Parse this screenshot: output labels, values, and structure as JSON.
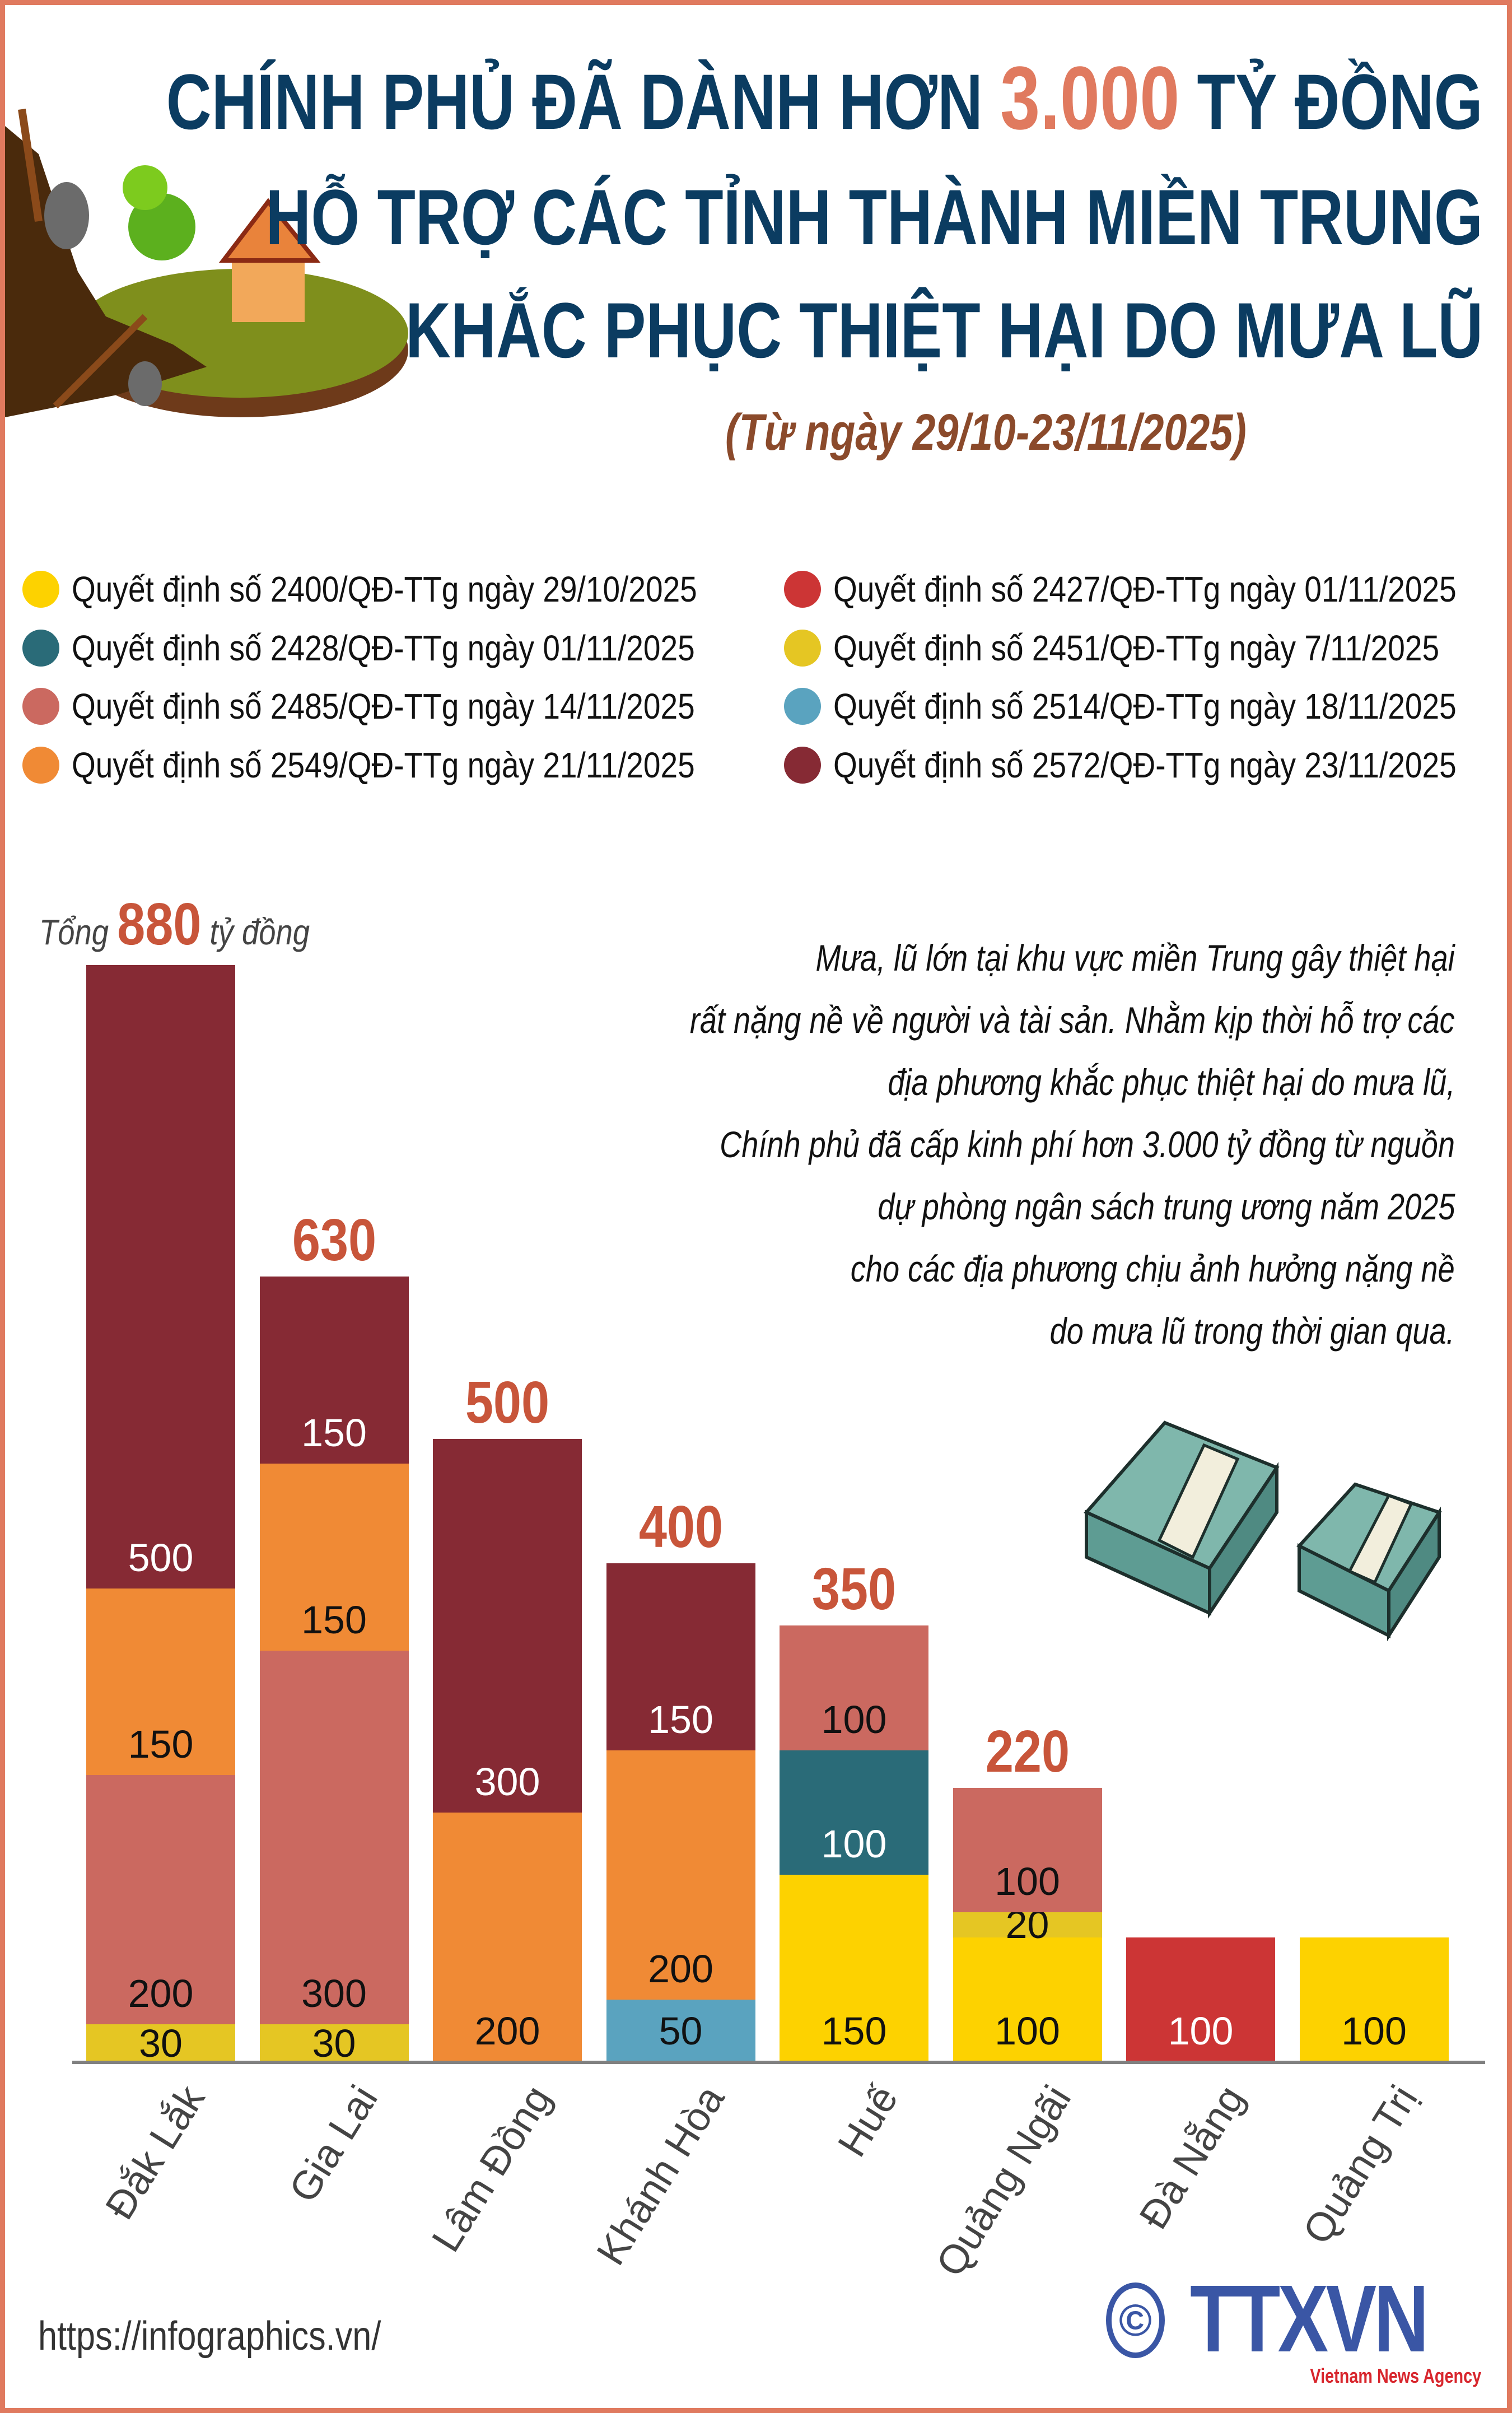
{
  "title": {
    "line1_pre": "CHÍNH PHỦ ĐÃ DÀNH HƠN",
    "line1_highlight": "3.000",
    "line1_post": "TỶ ĐỒNG",
    "line2": "HỖ TRỢ CÁC TỈNH THÀNH MIỀN TRUNG",
    "line3": "KHẮC PHỤC THIỆT HẠI DO MƯA LŨ",
    "subtitle": "(Từ ngày 29/10-23/11/2025)",
    "colors": {
      "title": "#0B3C61",
      "highlight": "#E07A5F",
      "subtitle": "#8B4A2B",
      "frame": "#E07A5F"
    }
  },
  "legend": [
    {
      "label": "Quyết định số 2400/QĐ-TTg ngày 29/10/2025",
      "color": "#FDD200"
    },
    {
      "label": "Quyết định số 2427/QĐ-TTg ngày 01/11/2025",
      "color": "#CC3535"
    },
    {
      "label": "Quyết định số 2428/QĐ-TTg ngày 01/11/2025",
      "color": "#2A6B78"
    },
    {
      "label": "Quyết định số 2451/QĐ-TTg ngày 7/11/2025",
      "color": "#E5C623"
    },
    {
      "label": "Quyết định số 2485/QĐ-TTg ngày 14/11/2025",
      "color": "#CB6960"
    },
    {
      "label": "Quyết định số 2514/QĐ-TTg ngày 18/11/2025",
      "color": "#5AA3BF"
    },
    {
      "label": "Quyết định số 2549/QĐ-TTg ngày 21/11/2025",
      "color": "#F08A35"
    },
    {
      "label": "Quyết định số 2572/QĐ-TTg ngày 23/11/2025",
      "color": "#862A34"
    }
  ],
  "chart_data": {
    "type": "bar",
    "stacked": true,
    "unit": "tỷ đồng",
    "categories": [
      "Đắk Lắk",
      "Gia Lai",
      "Lâm Đồng",
      "Khánh Hòa",
      "Huế",
      "Quảng Ngãi",
      "Đà Nẵng",
      "Quảng Trị"
    ],
    "series": [
      {
        "name": "Quyết định số 2400/QĐ-TTg ngày 29/10/2025",
        "color": "#FDD200",
        "label_color": "#111111",
        "values": [
          0,
          0,
          0,
          0,
          150,
          100,
          0,
          100
        ]
      },
      {
        "name": "Quyết định số 2427/QĐ-TTg ngày 01/11/2025",
        "color": "#CC3535",
        "label_color": "#ffffff",
        "values": [
          0,
          0,
          0,
          0,
          0,
          0,
          100,
          0
        ]
      },
      {
        "name": "Quyết định số 2428/QĐ-TTg ngày 01/11/2025",
        "color": "#2A6B78",
        "label_color": "#ffffff",
        "values": [
          0,
          0,
          0,
          0,
          100,
          0,
          0,
          0
        ]
      },
      {
        "name": "Quyết định số 2451/QĐ-TTg ngày 7/11/2025",
        "color": "#E5C623",
        "label_color": "#111111",
        "values": [
          30,
          30,
          0,
          0,
          0,
          20,
          0,
          0
        ]
      },
      {
        "name": "Quyết định số 2485/QĐ-TTg ngày 14/11/2025",
        "color": "#CB6960",
        "label_color": "#111111",
        "values": [
          200,
          300,
          0,
          0,
          100,
          100,
          0,
          0
        ]
      },
      {
        "name": "Quyết định số 2514/QĐ-TTg ngày 18/11/2025",
        "color": "#5AA3BF",
        "label_color": "#111111",
        "values": [
          0,
          0,
          0,
          50,
          0,
          0,
          0,
          0
        ]
      },
      {
        "name": "Quyết định số 2549/QĐ-TTg ngày 21/11/2025",
        "color": "#F08A35",
        "label_color": "#111111",
        "values": [
          150,
          150,
          200,
          200,
          0,
          0,
          0,
          0
        ]
      },
      {
        "name": "Quyết định số 2572/QĐ-TTg ngày 23/11/2025",
        "color": "#862A34",
        "label_color": "#ffffff",
        "values": [
          500,
          150,
          300,
          150,
          0,
          0,
          0,
          0
        ]
      }
    ],
    "totals": [
      null,
      "630",
      "500",
      "400",
      "350",
      "220",
      null,
      null
    ],
    "total_label": {
      "prefix": "Tổng",
      "value": "880",
      "suffix": "tỷ đồng"
    },
    "total_color": "#C8553A",
    "grid": false
  },
  "description": [
    "Mưa, lũ lớn tại khu vực miền Trung gây thiệt hại",
    "rất nặng nề về người và tài sản. Nhằm kịp thời hỗ trợ các",
    "địa phương khắc phục thiệt hại do mưa lũ,",
    "Chính phủ đã cấp kinh phí hơn 3.000 tỷ đồng từ nguồn",
    "dự phòng ngân sách trung ương năm 2025",
    "cho các địa phương chịu ảnh hưởng nặng nề",
    "do mưa lũ trong thời gian qua."
  ],
  "footer": {
    "url": "https://infographics.vn/",
    "logo_text": "TTXVN",
    "logo_sub": "Vietnam News Agency",
    "copyright": "©"
  }
}
